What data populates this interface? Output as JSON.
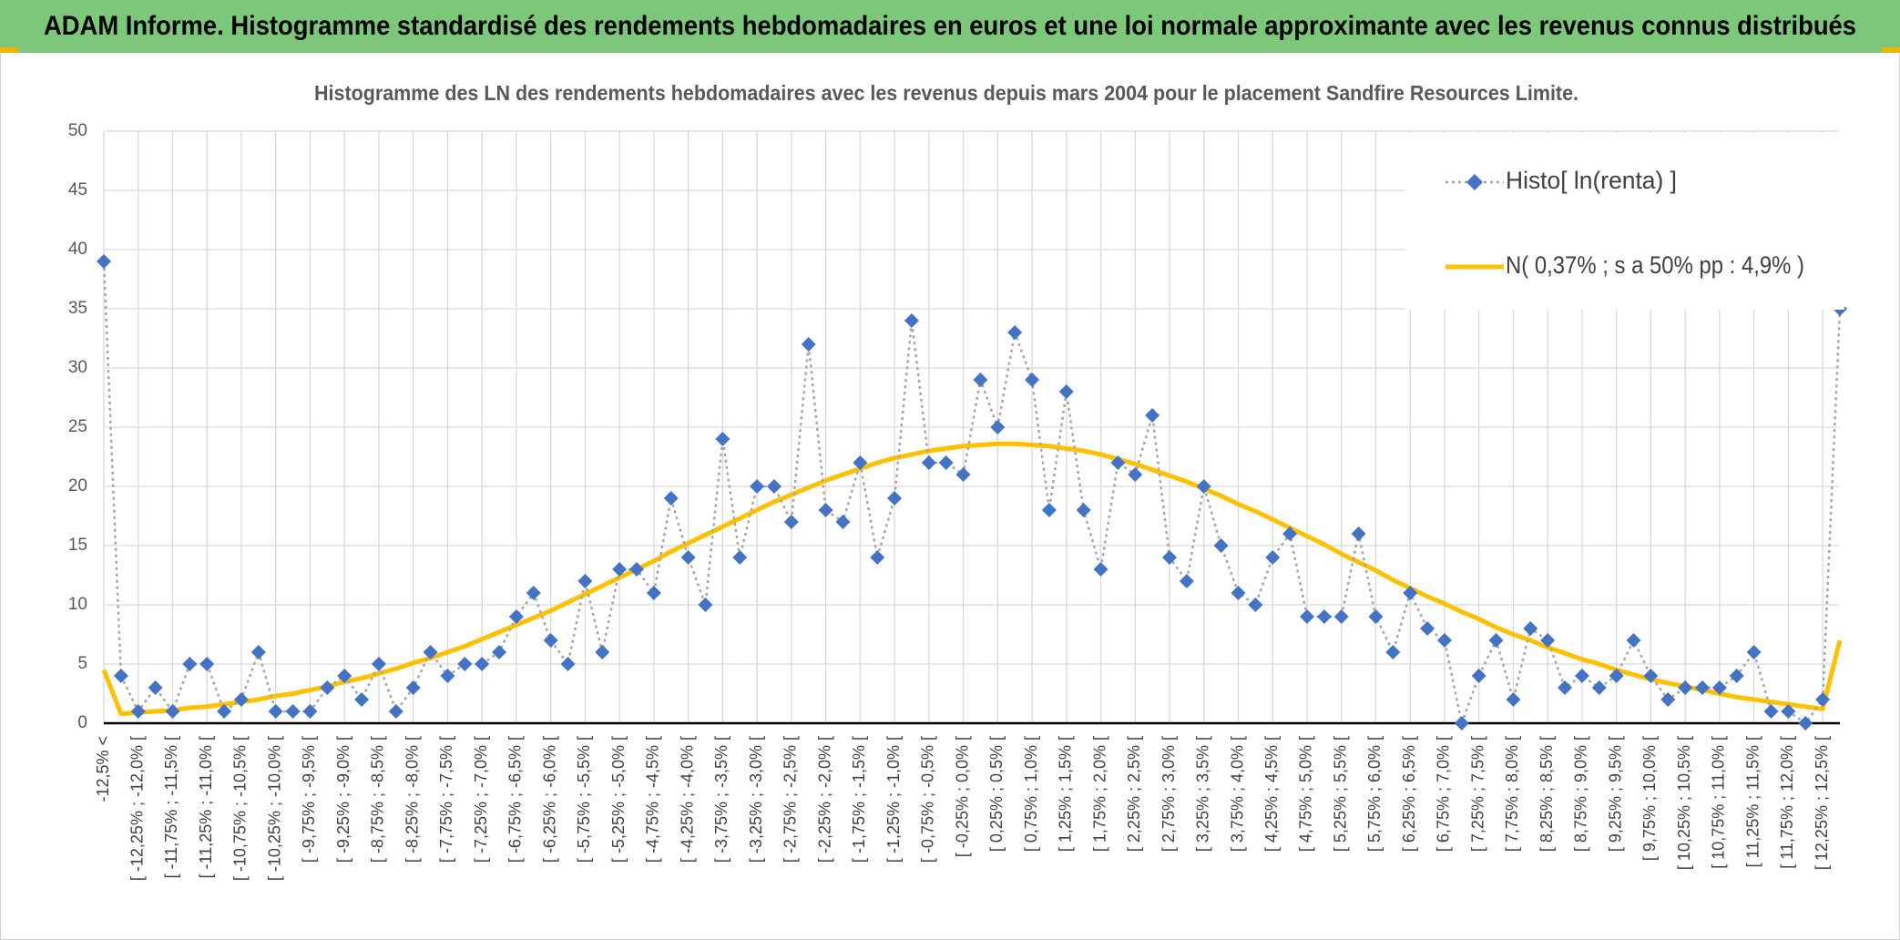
{
  "chart_data": {
    "type": "line",
    "title": "ADAM Informe. Histogramme standardisé des rendements hebdomadaires en euros et une loi normale approximante avec les revenus connus distribués",
    "subtitle": "Histogramme des LN des rendements hebdomadaires avec les revenus depuis mars 2004 pour le placement Sandfire Resources Limite.",
    "categories": [
      "-12,5% <",
      null,
      "[ -12,25% ; -12,0% [",
      null,
      "[ -11,75% ; -11,5% [",
      null,
      "[ -11,25% ; -11,0% [",
      null,
      "[ -10,75% ; -10,5% [",
      null,
      "[ -10,25% ; -10,0% [",
      null,
      "[ -9,75% ; -9,5% [",
      null,
      "[ -9,25% ; -9,0% [",
      null,
      "[ -8,75% ; -8,5% [",
      null,
      "[ -8,25% ; -8,0% [",
      null,
      "[ -7,75% ; -7,5% [",
      null,
      "[ -7,25% ; -7,0% [",
      null,
      "[ -6,75% ; -6,5% [",
      null,
      "[ -6,25% ; -6,0% [",
      null,
      "[ -5,75% ; -5,5% [",
      null,
      "[ -5,25% ; -5,0% [",
      null,
      "[ -4,75% ; -4,5% [",
      null,
      "[ -4,25% ; -4,0% [",
      null,
      "[ -3,75% ; -3,5% [",
      null,
      "[ -3,25% ; -3,0% [",
      null,
      "[ -2,75% ; -2,5% [",
      null,
      "[ -2,25% ; -2,0% [",
      null,
      "[ -1,75% ; -1,5% [",
      null,
      "[ -1,25% ; -1,0% [",
      null,
      "[ -0,75% ; -0,5% [",
      null,
      "[ -0,25% ; 0,0% [",
      null,
      "[ 0,25% ; 0,5% [",
      null,
      "[ 0,75% ; 1,0% [",
      null,
      "[ 1,25% ; 1,5% [",
      null,
      "[ 1,75% ; 2,0% [",
      null,
      "[ 2,25% ; 2,5% [",
      null,
      "[ 2,75% ; 3,0% [",
      null,
      "[ 3,25% ; 3,5% [",
      null,
      "[ 3,75% ; 4,0% [",
      null,
      "[ 4,25% ; 4,5% [",
      null,
      "[ 4,75% ; 5,0% [",
      null,
      "[ 5,25% ; 5,5% [",
      null,
      "[ 5,75% ; 6,0% [",
      null,
      "[ 6,25% ; 6,5% [",
      null,
      "[ 6,75% ; 7,0% [",
      null,
      "[ 7,25% ; 7,5% [",
      null,
      "[ 7,75% ; 8,0% [",
      null,
      "[ 8,25% ; 8,5% [",
      null,
      "[ 8,75% ; 9,0% [",
      null,
      "[ 9,25% ; 9,5% [",
      null,
      "[ 9,75% ; 10,0% [",
      null,
      "[ 10,25% ; 10,5% [",
      null,
      "[ 10,75% ; 11,0% [",
      null,
      "[ 11,25% ; 11,5% [",
      null,
      "[ 11,75% ; 12,0% [",
      null,
      "[ 12,25% ; 12,5% [",
      null
    ],
    "series": [
      {
        "name": "Histo[ ln(renta) ]",
        "color": "#4472c4",
        "line_color": "#a5a5a5",
        "marker": "diamond",
        "linestyle": "dotted",
        "values": [
          39,
          4,
          1,
          3,
          1,
          5,
          5,
          1,
          2,
          6,
          1,
          1,
          1,
          3,
          4,
          2,
          5,
          1,
          3,
          6,
          4,
          5,
          5,
          6,
          9,
          11,
          7,
          5,
          12,
          6,
          13,
          13,
          11,
          19,
          14,
          10,
          24,
          14,
          20,
          20,
          17,
          32,
          18,
          17,
          22,
          14,
          19,
          34,
          22,
          22,
          21,
          29,
          25,
          33,
          29,
          18,
          28,
          18,
          13,
          22,
          21,
          26,
          14,
          12,
          20,
          15,
          11,
          10,
          14,
          16,
          9,
          9,
          9,
          16,
          9,
          6,
          11,
          8,
          7,
          0,
          4,
          7,
          2,
          8,
          7,
          3,
          4,
          3,
          4,
          7,
          4,
          2,
          3,
          3,
          3,
          4,
          6,
          1,
          1,
          0,
          2,
          35
        ]
      },
      {
        "name": "N( 0,37% ; s a 50% pp : 4,9% )",
        "color": "#ffc000",
        "marker": "none",
        "linestyle": "solid",
        "values": [
          4.5,
          0.8,
          0.9,
          1.0,
          1.1,
          1.3,
          1.4,
          1.6,
          1.8,
          2.0,
          2.3,
          2.5,
          2.8,
          3.1,
          3.5,
          3.8,
          4.2,
          4.6,
          5.1,
          5.5,
          6.0,
          6.5,
          7.1,
          7.7,
          8.3,
          8.9,
          9.5,
          10.2,
          10.9,
          11.6,
          12.3,
          13.0,
          13.7,
          14.5,
          15.2,
          15.9,
          16.6,
          17.3,
          18.0,
          18.7,
          19.3,
          19.9,
          20.5,
          21.0,
          21.5,
          22.0,
          22.4,
          22.7,
          23.0,
          23.2,
          23.4,
          23.5,
          23.6,
          23.6,
          23.5,
          23.4,
          23.2,
          23.0,
          22.7,
          22.3,
          21.9,
          21.4,
          20.9,
          20.4,
          19.8,
          19.2,
          18.5,
          17.9,
          17.2,
          16.5,
          15.8,
          15.1,
          14.3,
          13.6,
          12.9,
          12.1,
          11.4,
          10.7,
          10.1,
          9.4,
          8.8,
          8.1,
          7.5,
          7.0,
          6.4,
          5.9,
          5.4,
          5.0,
          4.5,
          4.1,
          3.7,
          3.4,
          3.1,
          2.8,
          2.5,
          2.2,
          2.0,
          1.8,
          1.6,
          1.4,
          1.2,
          7.0
        ]
      }
    ],
    "ylim": [
      0,
      50
    ],
    "yticks": [
      0,
      5,
      10,
      15,
      20,
      25,
      30,
      35,
      40,
      45,
      50
    ],
    "grid": true,
    "legend": "upper right"
  }
}
